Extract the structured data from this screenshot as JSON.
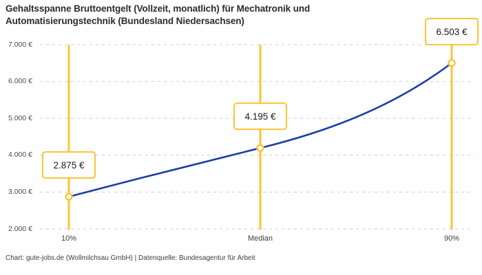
{
  "title": "Gehaltsspanne Bruttoentgelt (Vollzeit, monatlich) für Mechatronik und Automatisierungstechnik (Bundesland Niedersachsen)",
  "footer": "Chart: gute-jobs.de (Wollmilchsau GmbH) | Datenquelle: Bundesagentur für Arbeit",
  "colors": {
    "accent_yellow": "#fbc437",
    "line_blue": "#1d3ca4",
    "grid_gray": "#cccccc",
    "title_text": "#2b2b2b",
    "axis_text": "#4a4a4a",
    "footer_text": "#3c3c3c",
    "marker_fill": "#ffffff"
  },
  "chart_data": {
    "type": "line",
    "title": "Gehaltsspanne Bruttoentgelt (Vollzeit, monatlich) für Mechatronik und Automatisierungstechnik (Bundesland Niedersachsen)",
    "categories": [
      "10%",
      "Median",
      "90%"
    ],
    "values": [
      2875,
      4195,
      6503
    ],
    "value_labels": [
      "2.875 €",
      "4.195 €",
      "6.503 €"
    ],
    "ylim": [
      2000,
      7000
    ],
    "y_tick_step": 1000,
    "y_tick_labels": [
      "2.000 €",
      "3.000 €",
      "4.000 €",
      "5.000 €",
      "6.000 €",
      "7.000 €"
    ],
    "xlabel": "",
    "ylabel": "",
    "grid": "horizontal-dashed",
    "legend": "none",
    "annotations": "each percentile marked with full-height vertical accent line, open circle marker and framed value label",
    "source": "Chart: gute-jobs.de (Wollmilchsau GmbH) | Datenquelle: Bundesagentur für Arbeit"
  }
}
